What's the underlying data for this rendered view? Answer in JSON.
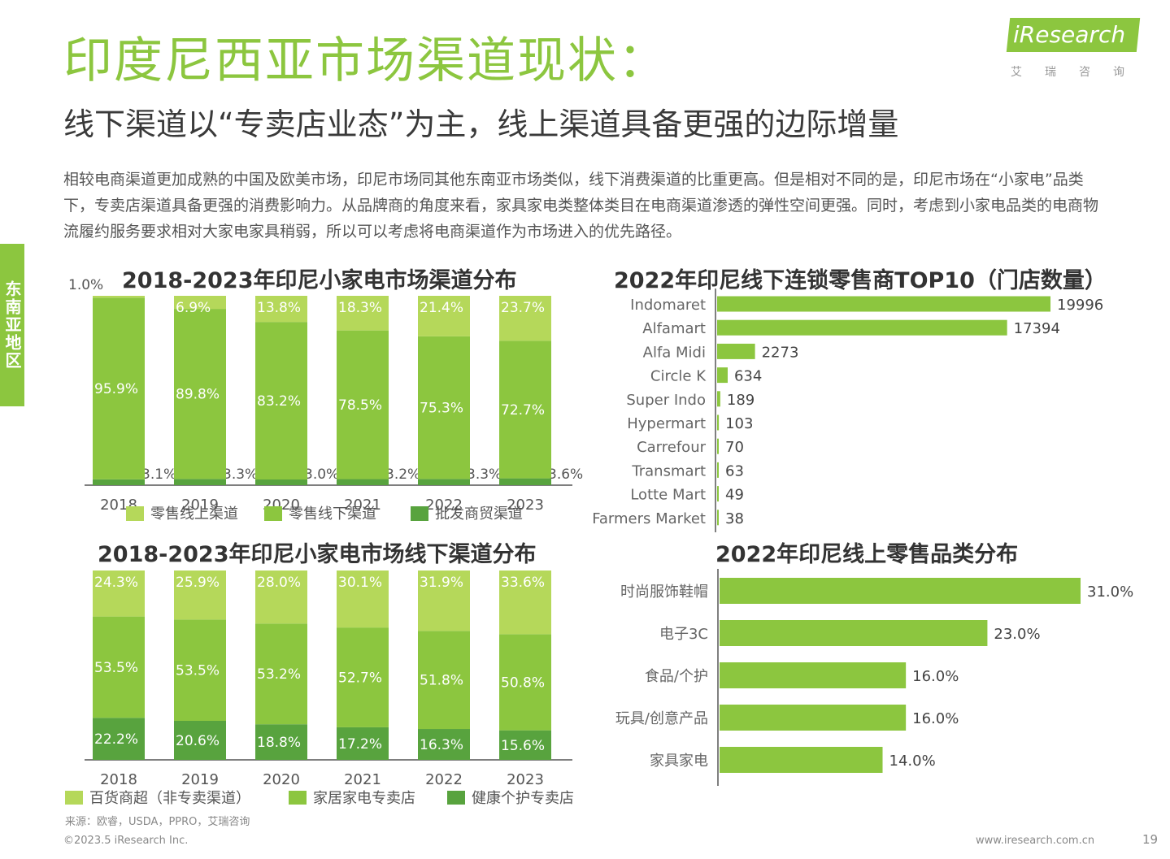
{
  "header": {
    "title": "印度尼西亚市场渠道现状：",
    "subtitle": "线下渠道以“专卖店业态”为主，线上渠道具备更强的边际增量",
    "logo": "iResearch",
    "logo_sub": "艾瑞咨询"
  },
  "side_tab": "东南亚地区",
  "body_text": "相较电商渠道更加成熟的中国及欧美市场，印尼市场同其他东南亚市场类似，线下消费渠道的比重更高。但是相对不同的是，印尼市场在“小家电”品类下，专卖店渠道具备更强的消费影响力。从品牌商的角度来看，家具家电类整体类目在电商渠道渗透的弹性空间更强。同时，考虑到小家电品类的电商物流履约服务要求相对大家电家具稍弱，所以可以考虑将电商渠道作为市场进入的优先路径。",
  "colors": {
    "light": "#b5d85a",
    "mid": "#8cc63f",
    "dark": "#58a33e",
    "title_green": "#8cc63f"
  },
  "chart_data": [
    {
      "type": "bar",
      "stacked": true,
      "title": "2018-2023年印尼小家电市场渠道分布",
      "categories": [
        "2018",
        "2019",
        "2020",
        "2021",
        "2022",
        "2023"
      ],
      "series": [
        {
          "name": "批发商贸渠道",
          "values": [
            3.1,
            3.3,
            3.0,
            3.2,
            3.3,
            3.6
          ],
          "color": "#58a33e",
          "labels": [
            "3.1%",
            "3.3%",
            "3.0%",
            "3.2%",
            "3.3%",
            "3.6%"
          ]
        },
        {
          "name": "零售线下渠道",
          "values": [
            95.9,
            89.8,
            83.2,
            78.5,
            75.3,
            72.7
          ],
          "color": "#8cc63f",
          "labels": [
            "95.9%",
            "89.8%",
            "83.2%",
            "78.5%",
            "75.3%",
            "72.7%"
          ]
        },
        {
          "name": "零售线上渠道",
          "values": [
            1.0,
            6.9,
            13.8,
            18.3,
            21.4,
            23.7
          ],
          "color": "#b5d85a",
          "labels": [
            "1.0%",
            "6.9%",
            "13.8%",
            "18.3%",
            "21.4%",
            "23.7%"
          ]
        }
      ],
      "legend": [
        "零售线上渠道",
        "零售线下渠道",
        "批发商贸渠道"
      ],
      "ylim": [
        0,
        100
      ]
    },
    {
      "type": "bar",
      "stacked": true,
      "title": "2018-2023年印尼小家电市场线下渠道分布",
      "categories": [
        "2018",
        "2019",
        "2020",
        "2021",
        "2022",
        "2023"
      ],
      "series": [
        {
          "name": "健康个护专卖店",
          "values": [
            22.2,
            20.6,
            18.8,
            17.2,
            16.3,
            15.6
          ],
          "color": "#58a33e",
          "labels": [
            "22.2%",
            "20.6%",
            "18.8%",
            "17.2%",
            "16.3%",
            "15.6%"
          ]
        },
        {
          "name": "家居家电专卖店",
          "values": [
            53.5,
            53.5,
            53.2,
            52.7,
            51.8,
            50.8
          ],
          "color": "#8cc63f",
          "labels": [
            "53.5%",
            "53.5%",
            "53.2%",
            "52.7%",
            "51.8%",
            "50.8%"
          ]
        },
        {
          "name": "百货商超（非专卖渠道）",
          "values": [
            24.3,
            25.9,
            28.0,
            30.1,
            31.9,
            33.6
          ],
          "color": "#b5d85a",
          "labels": [
            "24.3%",
            "25.9%",
            "28.0%",
            "30.1%",
            "31.9%",
            "33.6%"
          ]
        }
      ],
      "legend": [
        "百货商超（非专卖渠道）",
        "家居家电专卖店",
        "健康个护专卖店"
      ],
      "ylim": [
        0,
        100
      ]
    },
    {
      "type": "bar",
      "orientation": "horizontal",
      "title": "2022年印尼线下连锁零售商TOP10（门店数量）",
      "categories": [
        "Indomaret",
        "Alfamart",
        "Alfa Midi",
        "Circle K",
        "Super Indo",
        "Hypermart",
        "Carrefour",
        "Transmart",
        "Lotte Mart",
        "Farmers Market"
      ],
      "values": [
        19996,
        17394,
        2273,
        634,
        189,
        103,
        70,
        63,
        49,
        38
      ],
      "labels": [
        "19996",
        "17394",
        "2273",
        "634",
        "189",
        "103",
        "70",
        "63",
        "49",
        "38"
      ],
      "xlim": [
        0,
        19996
      ]
    },
    {
      "type": "bar",
      "orientation": "horizontal",
      "title": "2022年印尼线上零售品类分布",
      "categories": [
        "时尚服饰鞋帽",
        "电子3C",
        "食品/个护",
        "玩具/创意产品",
        "家具家电"
      ],
      "values": [
        31.0,
        23.0,
        16.0,
        16.0,
        14.0
      ],
      "labels": [
        "31.0%",
        "23.0%",
        "16.0%",
        "16.0%",
        "14.0%"
      ],
      "xlim": [
        0,
        31
      ]
    }
  ],
  "footer": {
    "source": "来源：欧睿，USDA，PPRO，艾瑞咨询",
    "copyright": "©2023.5 iResearch Inc.",
    "website": "www.iresearch.com.cn",
    "page": "19"
  }
}
